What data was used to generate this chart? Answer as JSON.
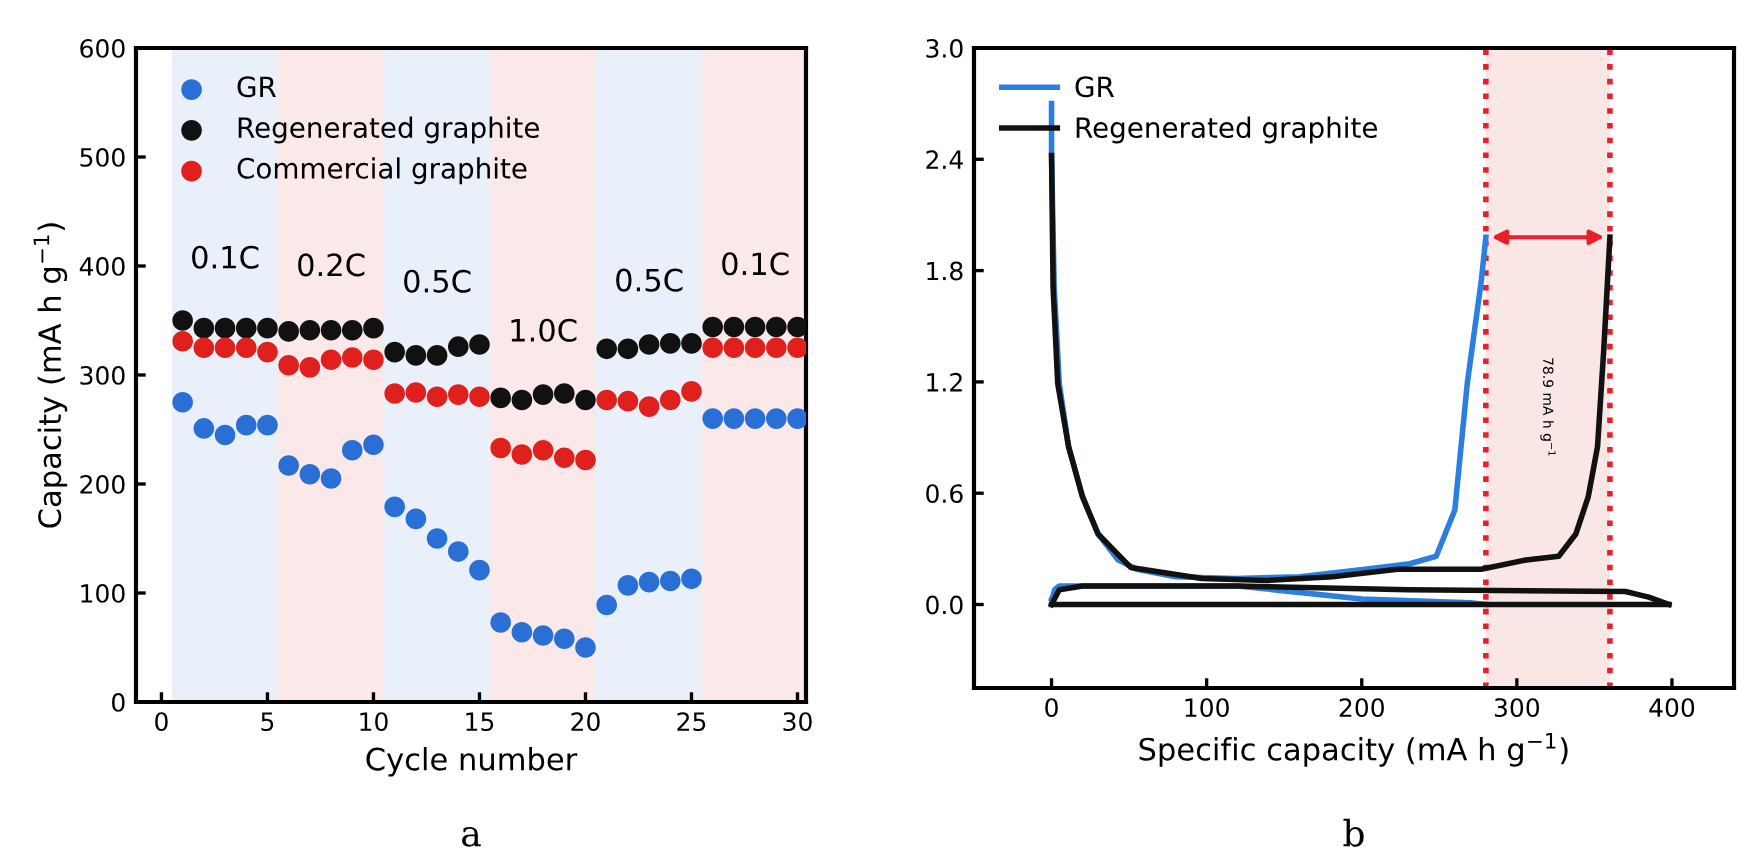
{
  "chart_data": [
    {
      "type": "scatter",
      "xlabel": "Cycle number",
      "ylabel": "Capacity (mA h g$^{−1}$)",
      "x": [
        1,
        2,
        3,
        4,
        5,
        6,
        7,
        8,
        9,
        10,
        11,
        12,
        13,
        14,
        15,
        16,
        17,
        18,
        19,
        20,
        21,
        22,
        23,
        24,
        25,
        26,
        27,
        28,
        29,
        30
      ],
      "series": [
        {
          "name": "GR",
          "color": "#2a6fd6",
          "values": [
            275,
            251,
            245,
            254,
            254,
            217,
            209,
            205,
            231,
            236,
            179,
            168,
            150,
            138,
            121,
            73,
            64,
            61,
            58,
            50,
            89,
            107,
            110,
            111,
            113,
            260,
            260,
            260,
            260,
            260
          ]
        },
        {
          "name": "Regenerated graphite",
          "color": "#111111",
          "values": [
            350,
            343,
            343,
            343,
            343,
            340,
            341,
            341,
            341,
            343,
            321,
            318,
            318,
            326,
            328,
            279,
            277,
            282,
            283,
            277,
            324,
            324,
            328,
            329,
            329,
            344,
            344,
            344,
            344,
            344
          ]
        },
        {
          "name": "Commercial graphite",
          "color": "#e0201c",
          "values": [
            331,
            325,
            325,
            325,
            321,
            309,
            307,
            314,
            316,
            314,
            283,
            284,
            280,
            282,
            280,
            233,
            227,
            231,
            224,
            222,
            277,
            276,
            271,
            277,
            285,
            325,
            325,
            325,
            325,
            325
          ]
        }
      ],
      "bands": [
        {
          "axis": "x",
          "from": 0.5,
          "to": 5.5,
          "label": "0.1C",
          "color": "#e9f0fa"
        },
        {
          "axis": "x",
          "from": 5.5,
          "to": 10.5,
          "label": "0.2C",
          "color": "#fbe9e9"
        },
        {
          "axis": "x",
          "from": 10.5,
          "to": 15.5,
          "label": "0.5C",
          "color": "#e9f0fa"
        },
        {
          "axis": "x",
          "from": 15.5,
          "to": 20.5,
          "label": "1.0C",
          "color": "#fbe9e9"
        },
        {
          "axis": "x",
          "from": 20.5,
          "to": 25.5,
          "label": "0.5C",
          "color": "#e9f0fa"
        },
        {
          "axis": "x",
          "from": 25.5,
          "to": 30.5,
          "label": "0.1C",
          "color": "#fbe9e9"
        }
      ],
      "xlim": [
        -1.2,
        30.4
      ],
      "ylim": [
        0,
        600
      ],
      "xticks": [
        0,
        5,
        10,
        15,
        20,
        25,
        30
      ],
      "yticks": [
        0,
        100,
        200,
        300,
        400,
        500,
        600
      ],
      "marker": "circle",
      "legend": "top left",
      "grid": false,
      "annotations": [
        "a"
      ]
    },
    {
      "type": "line",
      "xlabel": "Specific capacity (mA h g$^{−1}$)",
      "series": [
        {
          "name": "GR",
          "color": "#2a7fe0",
          "x": [
            0,
            0,
            1.7,
            5,
            11,
            20,
            30,
            43,
            55,
            80,
            118,
            160,
            202,
            231,
            248,
            260,
            268,
            277,
            280
          ],
          "values": [
            2.7,
            2.42,
            1.71,
            1.19,
            0.85,
            0.58,
            0.38,
            0.24,
            0.19,
            0.15,
            0.14,
            0.15,
            0.19,
            0.22,
            0.26,
            0.51,
            1.19,
            1.74,
            1.98
          ]
        },
        {
          "color": "#2a7fe0",
          "x": [
            0,
            1,
            2,
            5,
            120,
            200,
            270,
            280
          ],
          "values": [
            0.03,
            0.05,
            0.08,
            0.1,
            0.1,
            0.03,
            0.01,
            0.0
          ]
        },
        {
          "name": "Regenerated graphite",
          "color": "#111111",
          "x": [
            0,
            1,
            4,
            11,
            20,
            30,
            51,
            97,
            139,
            181,
            223,
            277,
            306,
            327,
            338,
            346,
            352,
            356,
            360
          ],
          "values": [
            2.42,
            1.71,
            1.19,
            0.85,
            0.58,
            0.38,
            0.2,
            0.14,
            0.13,
            0.15,
            0.19,
            0.19,
            0.24,
            0.26,
            0.38,
            0.58,
            0.85,
            1.37,
            1.98
          ]
        },
        {
          "color": "#111111",
          "x": [
            0,
            5,
            20,
            120,
            230,
            370,
            385,
            398
          ],
          "values": [
            0.0,
            0.08,
            0.1,
            0.1,
            0.08,
            0.07,
            0.04,
            0.0
          ]
        },
        {
          "color": "#111111",
          "x": [
            0,
            398
          ],
          "values": [
            0.0,
            0.0
          ]
        }
      ],
      "bands": [
        {
          "axis": "x",
          "from": 280,
          "to": 360,
          "color": "#fbe6e6"
        }
      ],
      "ref_lines": [
        {
          "axis": "x",
          "value": 280,
          "color": "#e8202a",
          "line_style": "dotted"
        },
        {
          "axis": "x",
          "value": 360,
          "color": "#e8202a",
          "line_style": "dotted"
        }
      ],
      "xlim": [
        -50,
        440
      ],
      "ylim": [
        -0.45,
        3.0
      ],
      "xticks": [
        0,
        100,
        200,
        300,
        400
      ],
      "yticks": [
        {
          "value": 0.0,
          "label": "0.0"
        },
        {
          "value": 0.6,
          "label": "0.6"
        },
        {
          "value": 1.2,
          "label": "1.2"
        },
        {
          "value": 1.8,
          "label": "1.8"
        },
        {
          "value": 2.4,
          "label": "2.4"
        },
        {
          "value": 3.0,
          "label": "3.0"
        }
      ],
      "marker": "none",
      "line_style": "solid",
      "legend": "top left",
      "grid": false,
      "annotations": [
        "78.9 mA h g$^{−1}$",
        "b"
      ]
    }
  ]
}
